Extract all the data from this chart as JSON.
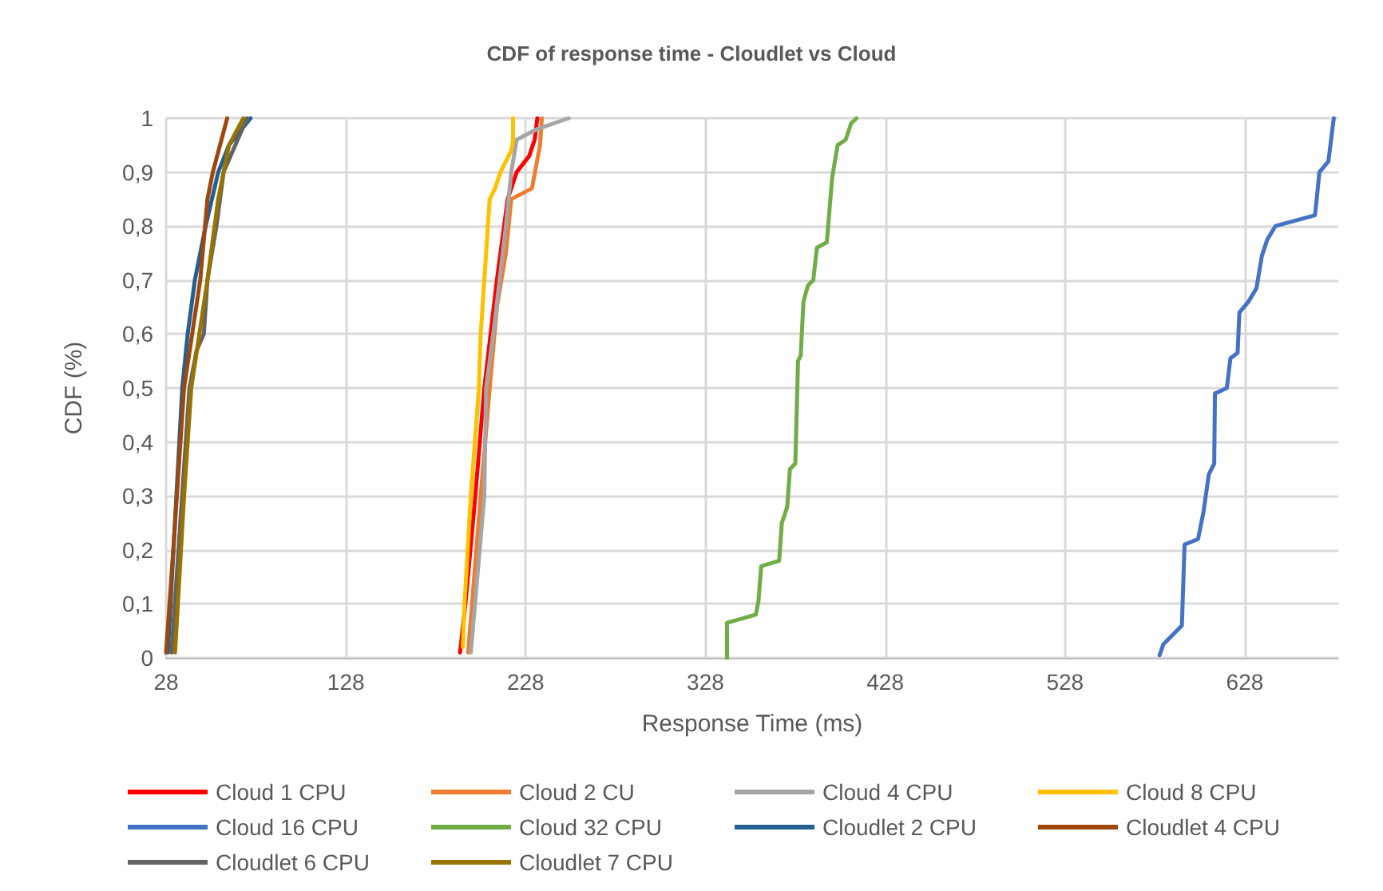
{
  "chart_data": {
    "type": "line",
    "title": "CDF of response time - Cloudlet vs Cloud",
    "xlabel": "Response Time (ms)",
    "ylabel": "CDF (%)",
    "xlim": [
      28,
      680
    ],
    "xticks": [
      28,
      128,
      228,
      328,
      428,
      528,
      628
    ],
    "ylim": [
      0,
      1
    ],
    "yticks": [
      0,
      {
        "value": 0.1,
        "label": "0,1"
      },
      {
        "value": 0.2,
        "label": "0,2"
      },
      {
        "value": 0.3,
        "label": "0,3"
      },
      {
        "value": 0.4,
        "label": "0,4"
      },
      {
        "value": 0.5,
        "label": "0,5"
      },
      {
        "value": 0.6,
        "label": "0,6"
      },
      {
        "value": 0.7,
        "label": "0,7"
      },
      {
        "value": 0.8,
        "label": "0,8"
      },
      {
        "value": 0.9,
        "label": "0,9"
      },
      1
    ],
    "grid": true,
    "legend": "bottom",
    "marker": "none",
    "line_style": "solid",
    "series": [
      {
        "name": "Cloud 1 CPU",
        "color": "#ff0000",
        "x": [
          191.5,
          194.5,
          200,
          205,
          212,
          218,
          223,
          230,
          233,
          234.5
        ],
        "values": [
          0.01,
          0.1,
          0.3,
          0.5,
          0.7,
          0.85,
          0.9,
          0.93,
          0.96,
          1
        ]
      },
      {
        "name": "Cloud 2 CU",
        "color": "#ed7d31",
        "x": [
          196,
          203,
          208,
          212,
          217,
          220,
          231.5,
          236,
          237
        ],
        "values": [
          0.01,
          0.3,
          0.5,
          0.65,
          0.75,
          0.85,
          0.87,
          0.95,
          1
        ]
      },
      {
        "name": "Cloud 4 CPU",
        "color": "#a5a5a5",
        "x": [
          197.5,
          205,
          206,
          210,
          217,
          220,
          223,
          234.5,
          252
        ],
        "values": [
          0.01,
          0.3,
          0.5,
          0.6,
          0.8,
          0.9,
          0.96,
          0.98,
          1
        ]
      },
      {
        "name": "Cloud 8 CPU",
        "color": "#ffc000",
        "x": [
          193,
          194,
          197.5,
          202,
          203,
          208,
          211,
          214,
          220,
          221,
          221
        ],
        "values": [
          0.02,
          0.1,
          0.3,
          0.5,
          0.6,
          0.85,
          0.87,
          0.9,
          0.94,
          0.96,
          1
        ]
      },
      {
        "name": "Cloud 16 CPU",
        "color": "#4472c4",
        "x": [
          580.6,
          582.7,
          593,
          594.5,
          602,
          605,
          608,
          611,
          611.4,
          618,
          620,
          624,
          625,
          630,
          634.5,
          637.5,
          640.5,
          645,
          667,
          668,
          669.5,
          674.5,
          676,
          677.5
        ],
        "values": [
          0.005,
          0.025,
          0.06,
          0.21,
          0.22,
          0.27,
          0.34,
          0.36,
          0.49,
          0.5,
          0.555,
          0.565,
          0.64,
          0.66,
          0.685,
          0.745,
          0.775,
          0.8,
          0.82,
          0.85,
          0.9,
          0.92,
          0.96,
          1
        ]
      },
      {
        "name": "Cloud 32 CPU",
        "color": "#70ad47",
        "x": [
          340,
          340,
          356,
          357.5,
          359,
          369,
          370.5,
          373.5,
          375,
          378,
          379.5,
          381,
          382.5,
          385,
          388,
          390,
          395.5,
          398.5,
          401.5,
          406,
          409,
          412
        ],
        "values": [
          0,
          0.065,
          0.08,
          0.105,
          0.17,
          0.18,
          0.25,
          0.28,
          0.35,
          0.36,
          0.55,
          0.56,
          0.66,
          0.69,
          0.7,
          0.76,
          0.77,
          0.89,
          0.95,
          0.96,
          0.99,
          1
        ]
      },
      {
        "name": "Cloudlet 2 CPU",
        "color": "#255e91",
        "x": [
          29,
          37,
          40,
          44,
          50,
          57,
          63,
          75
        ],
        "values": [
          0.01,
          0.5,
          0.6,
          0.7,
          0.8,
          0.9,
          0.95,
          1
        ]
      },
      {
        "name": "Cloudlet 4 CPU",
        "color": "#9e480e",
        "x": [
          28,
          32,
          38,
          47,
          51,
          54,
          62
        ],
        "values": [
          0.01,
          0.2,
          0.5,
          0.7,
          0.85,
          0.9,
          1
        ]
      },
      {
        "name": "Cloudlet 6 CPU",
        "color": "#636363",
        "x": [
          31,
          41,
          45,
          49,
          51,
          56,
          60,
          73
        ],
        "values": [
          0.01,
          0.5,
          0.57,
          0.6,
          0.7,
          0.8,
          0.9,
          1
        ]
      },
      {
        "name": "Cloudlet 7 CPU",
        "color": "#997300",
        "x": [
          33,
          38,
          42,
          51,
          57,
          63,
          71
        ],
        "values": [
          0.01,
          0.3,
          0.5,
          0.7,
          0.85,
          0.95,
          1
        ]
      }
    ]
  }
}
